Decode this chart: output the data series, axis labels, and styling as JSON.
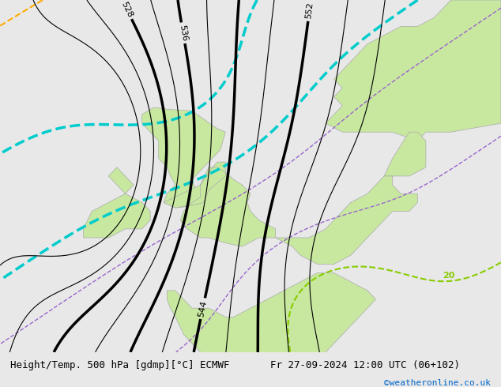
{
  "title_left": "Height/Temp. 500 hPa [gdmp][°C] ECMWF",
  "title_right": "Fr 27-09-2024 12:00 UTC (06+102)",
  "credit": "©weatheronline.co.uk",
  "background_color": "#e8e8e8",
  "land_color": "#c8e8a0",
  "sea_color": "#e8e8e8",
  "map_border_color": "#aaaaaa",
  "bottom_bar_color": "#e0e0e0",
  "text_color": "#000000",
  "credit_color": "#0066cc",
  "font_size_title": 9,
  "font_size_credit": 8,
  "contour_levels_black": [
    520,
    524,
    528,
    532,
    536,
    540,
    544,
    548,
    552,
    556,
    560
  ],
  "contour_label_levels": [
    528,
    536,
    544,
    552
  ],
  "contour_linewidths": [
    0.8,
    0.8,
    2.5,
    0.8,
    2.5,
    0.8,
    2.5,
    0.8,
    2.5,
    0.8,
    0.8
  ],
  "cyan_color": "#00cccc",
  "green_color": "#88cc00",
  "orange_color": "#ffaa00",
  "purple_color": "#9966cc"
}
